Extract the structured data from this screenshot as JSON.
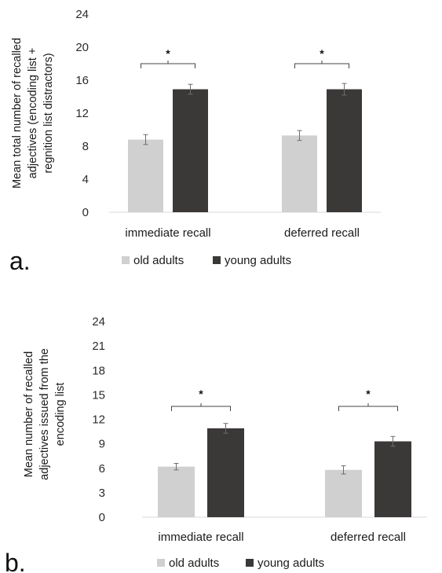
{
  "chart_data": [
    {
      "type": "bar",
      "panel_label": "a.",
      "ylabel": [
        "Mean total number of recalled",
        "adjectives (encoding list +",
        "regnition list distractors)"
      ],
      "categories": [
        "immediate recall",
        "deferred recall"
      ],
      "ylim": [
        0,
        24
      ],
      "yticks": [
        0,
        4,
        8,
        12,
        16,
        20,
        24
      ],
      "grid": false,
      "legend_position": "bottom",
      "series": [
        {
          "name": "old adults",
          "color": "#d0d0d0",
          "values": [
            8.8,
            9.3
          ],
          "errors": [
            0.6,
            0.6
          ]
        },
        {
          "name": "young adults",
          "color": "#3b3838",
          "values": [
            14.9,
            14.9
          ],
          "errors": [
            0.6,
            0.7
          ]
        }
      ],
      "annotations": [
        "*",
        "*"
      ]
    },
    {
      "type": "bar",
      "panel_label": "b.",
      "ylabel": [
        "Mean number of recalled",
        "adjectives issued from the",
        "encoding list"
      ],
      "categories": [
        "immediate recall",
        "deferred recall"
      ],
      "ylim": [
        0,
        24
      ],
      "yticks": [
        0,
        3,
        6,
        9,
        12,
        15,
        18,
        21,
        24
      ],
      "grid": false,
      "legend_position": "bottom",
      "series": [
        {
          "name": "old adults",
          "color": "#d0d0d0",
          "values": [
            6.2,
            5.8
          ],
          "errors": [
            0.4,
            0.5
          ]
        },
        {
          "name": "young adults",
          "color": "#3b3838",
          "values": [
            10.9,
            9.3
          ],
          "errors": [
            0.6,
            0.6
          ]
        }
      ],
      "annotations": [
        "*",
        "*"
      ]
    }
  ]
}
